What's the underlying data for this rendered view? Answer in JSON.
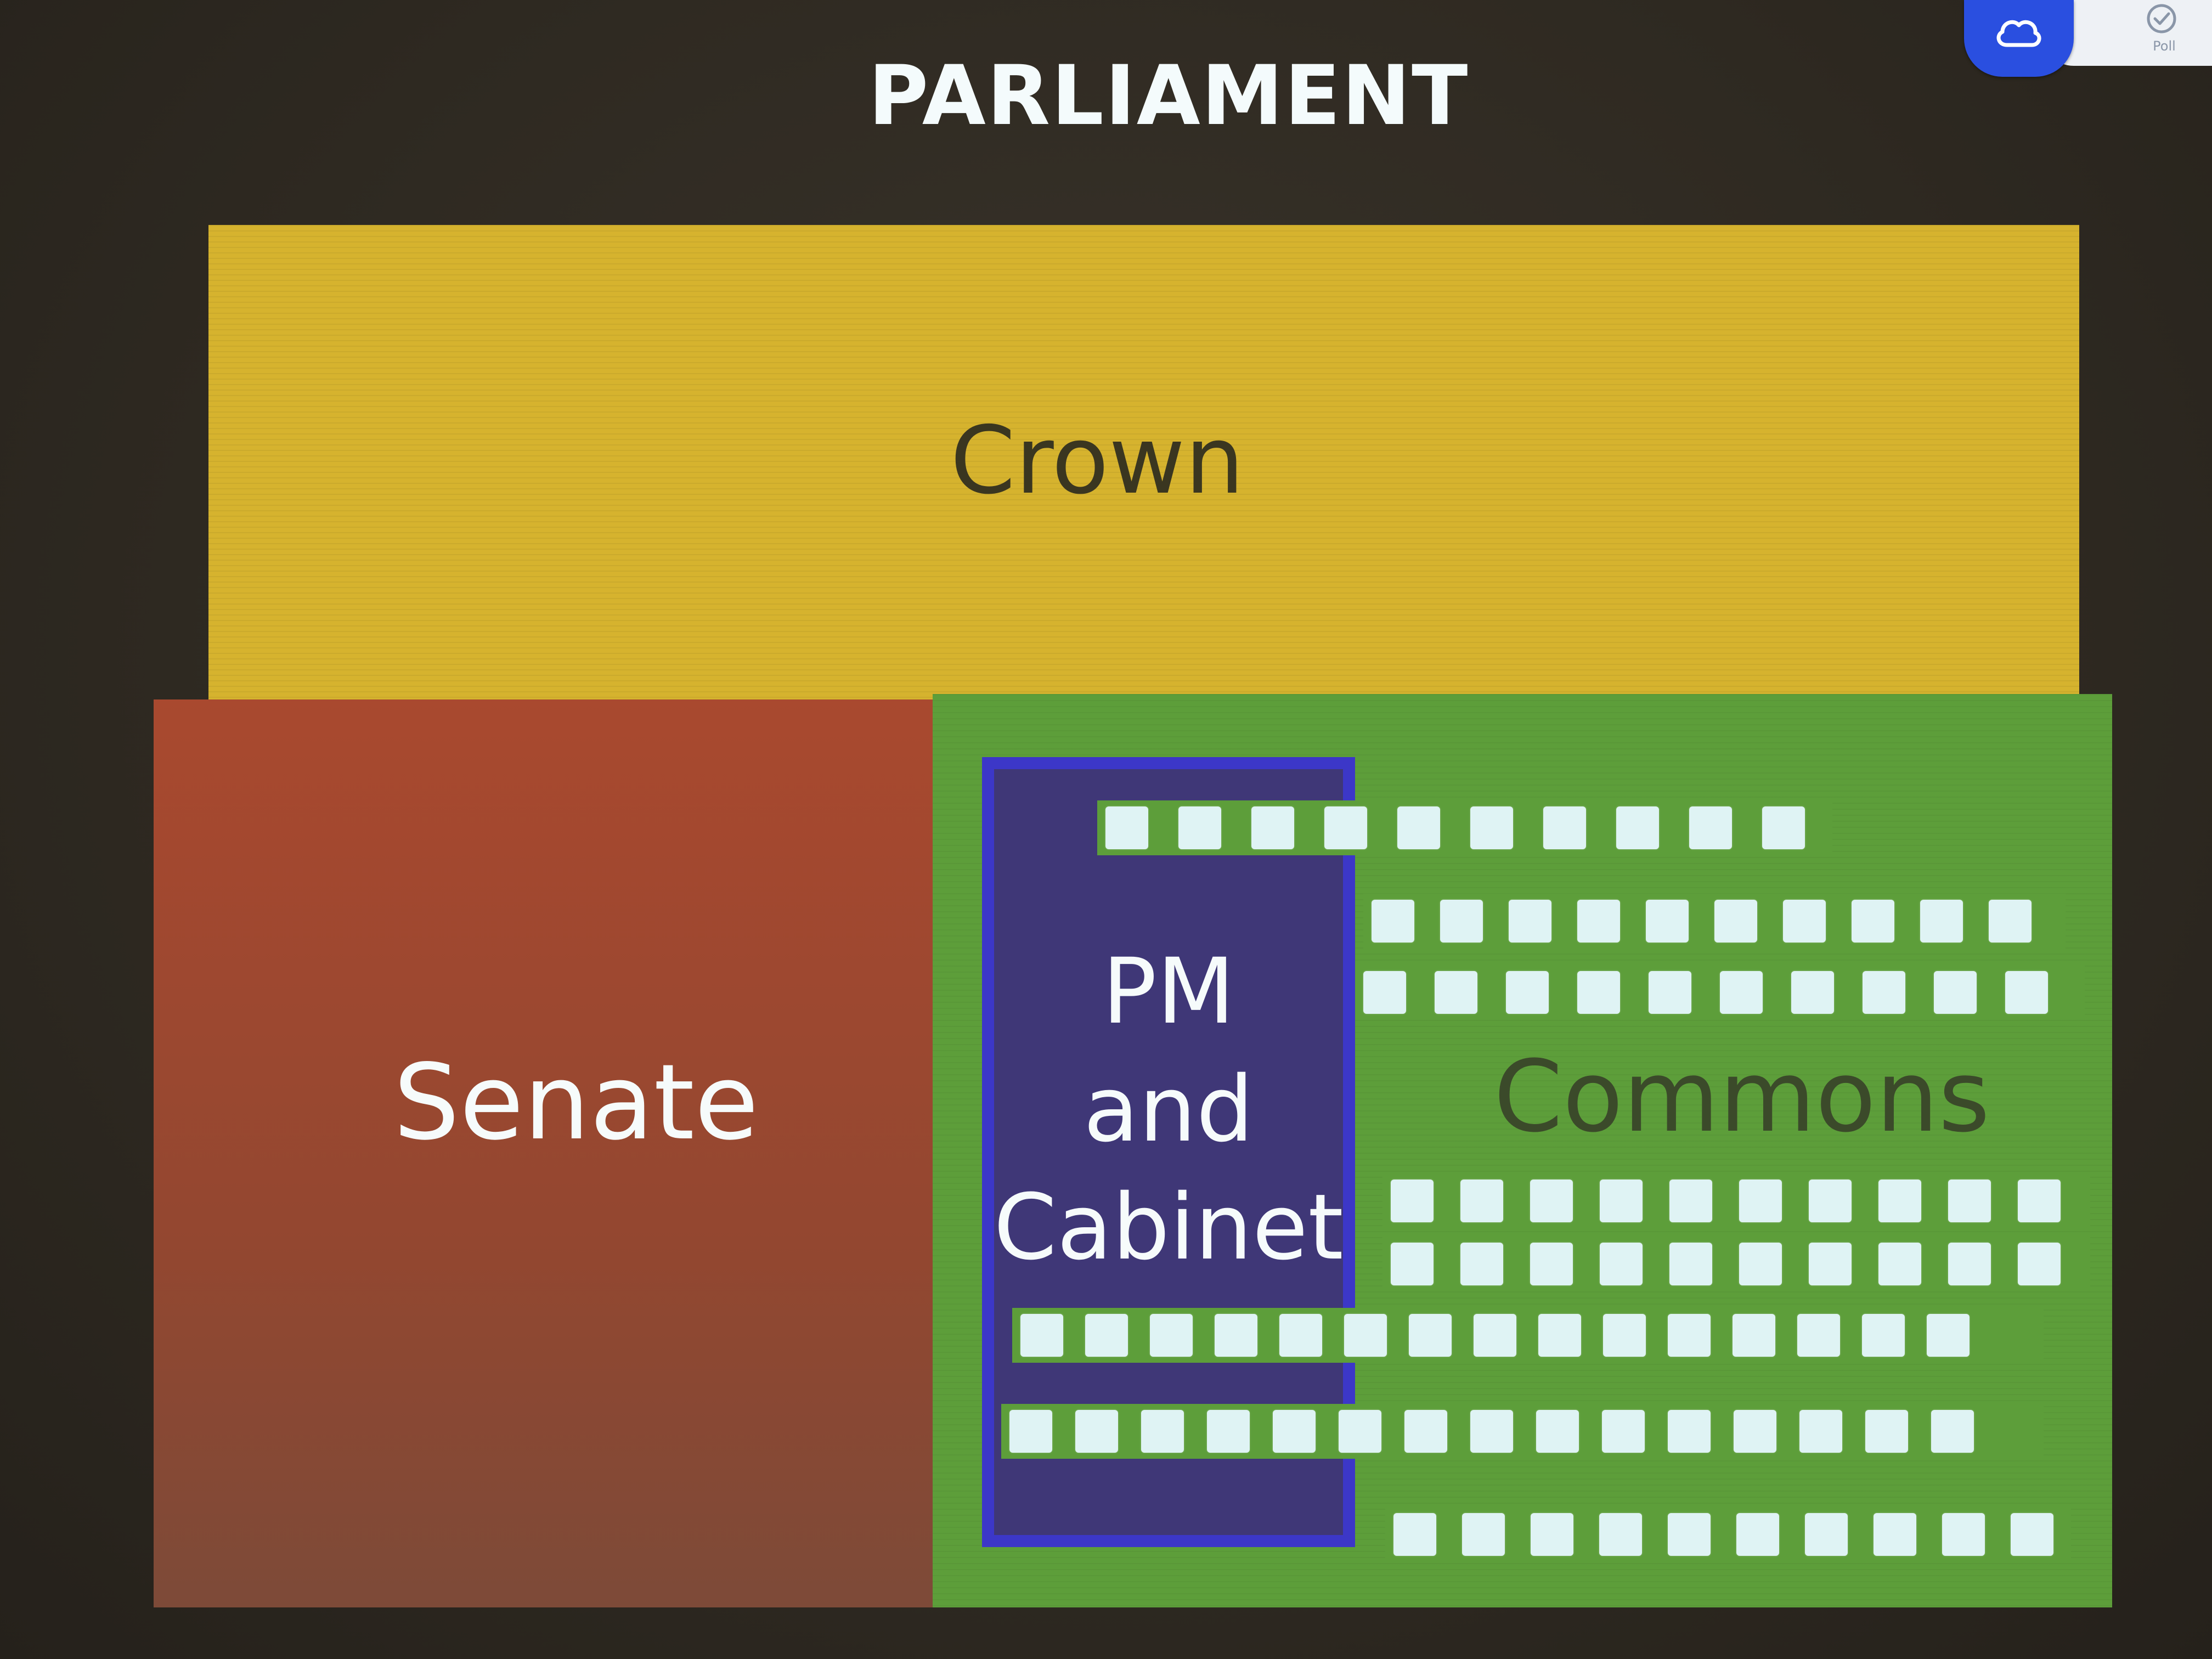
{
  "slide": {
    "title": "PARLIAMENT",
    "poll_label": "Poll"
  },
  "diagram": {
    "crown": {
      "label": "Crown",
      "color": "#d6b32e"
    },
    "senate": {
      "label": "Senate",
      "color": "#a9492f"
    },
    "commons": {
      "label": "Commons",
      "color": "#5d9e3a"
    },
    "cabinet": {
      "label_lines": [
        "PM",
        "and",
        "Cabinet"
      ],
      "color": "#3f3777",
      "border_color": "#3c37c8"
    },
    "seat_color": "#dff3f4",
    "seat_rows": [
      {
        "seats": 10
      },
      {
        "seats": 10
      },
      {
        "seats": 10
      },
      {
        "seats": 10
      },
      {
        "seats": 10
      },
      {
        "seats": 15
      },
      {
        "seats": 15
      },
      {
        "seats": 10
      }
    ]
  },
  "icons": {
    "cloud": "cloud-icon",
    "poll": "poll-check-icon"
  }
}
